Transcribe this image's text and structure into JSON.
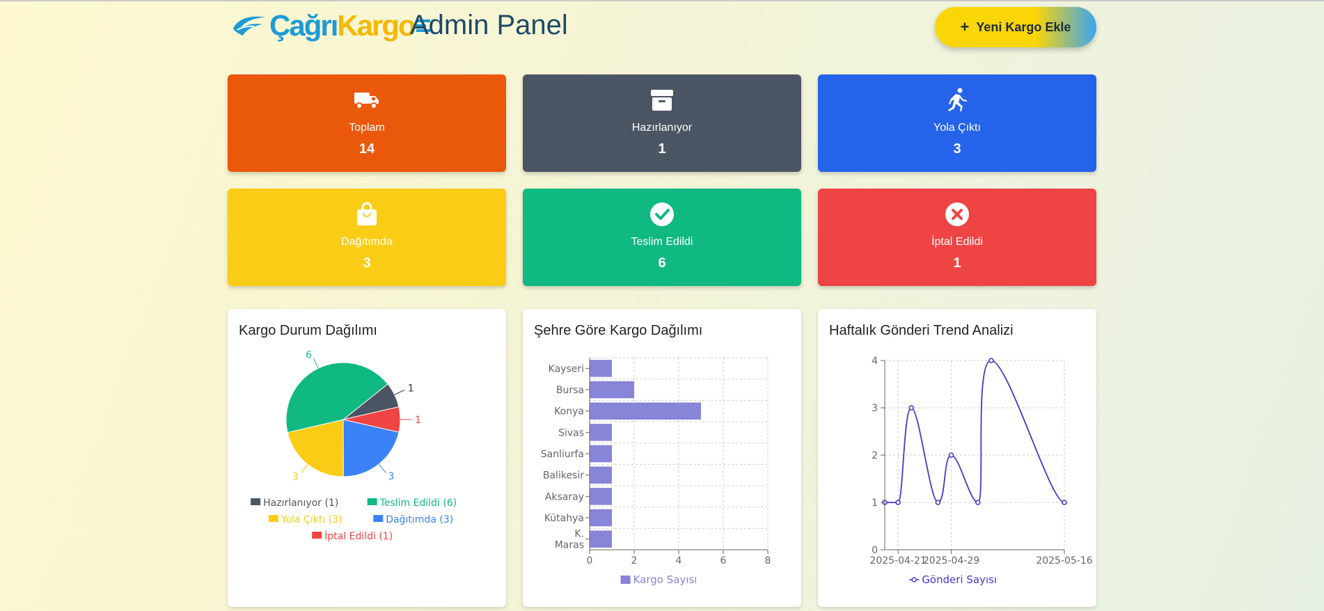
{
  "header": {
    "logo_part1": "Çağrı",
    "logo_part2": "Kargo",
    "title": "Admin Panel",
    "add_button_label": "Yeni Kargo Ekle"
  },
  "stats": [
    {
      "label": "Toplam",
      "value": "14",
      "color": "#ea580c",
      "icon": "truck-icon"
    },
    {
      "label": "Hazırlanıyor",
      "value": "1",
      "color": "#4b5563",
      "icon": "archive-box-icon"
    },
    {
      "label": "Yola Çıktı",
      "value": "3",
      "color": "#2563eb",
      "icon": "running-person-icon"
    },
    {
      "label": "Dağıtımda",
      "value": "3",
      "color": "#facc15",
      "icon": "shopping-bag-icon"
    },
    {
      "label": "Teslim Edildi",
      "value": "6",
      "color": "#10b981",
      "icon": "check-circle-icon"
    },
    {
      "label": "İptal Edildi",
      "value": "1",
      "color": "#ef4444",
      "icon": "x-circle-icon"
    }
  ],
  "charts": {
    "status": {
      "title": "Kargo Durum Dağılımı",
      "legend": [
        "Hazırlanıyor (1)",
        "Teslim Edildi (6)",
        "Dağıtımda (3)",
        "Yola Çıktı (3)",
        "İptal Edildi (1)"
      ]
    },
    "city": {
      "title": "Şehre Göre Kargo Dağılımı",
      "legend": "Kargo Sayısı"
    },
    "trend": {
      "title": "Haftalık Gönderi Trend Analizi",
      "legend": "Gönderi Sayısı"
    }
  },
  "chart_data": [
    {
      "type": "pie",
      "title": "Kargo Durum Dağılımı",
      "labels": [
        "Hazırlanıyor",
        "İptal Edildi",
        "Yola Çıktı",
        "Dağıtımda",
        "Teslim Edildi"
      ],
      "values": [
        1,
        1,
        3,
        3,
        6
      ],
      "colors": [
        "#4b5563",
        "#ef4444",
        "#3b82f6",
        "#facc15",
        "#10b981"
      ],
      "legend_position": "bottom"
    },
    {
      "type": "bar",
      "orientation": "horizontal",
      "title": "Şehre Göre Kargo Dağılımı",
      "categories": [
        "Kayseri",
        "Bursa",
        "Konya",
        "Sivas",
        "Sanliurfa",
        "Balikesir",
        "Aksaray",
        "Kütahya",
        "K. Maras"
      ],
      "series": [
        {
          "name": "Kargo Sayısı",
          "values": [
            1,
            2,
            5,
            1,
            1,
            1,
            1,
            1,
            1
          ]
        }
      ],
      "xlim": [
        0,
        8
      ],
      "xticks": [
        0,
        2,
        4,
        6,
        8
      ],
      "color": "#8884d8",
      "grid": true,
      "legend_position": "bottom"
    },
    {
      "type": "line",
      "title": "Haftalık Gönderi Trend Analizi",
      "x": [
        "2025-04-19",
        "2025-04-21",
        "2025-04-23",
        "2025-04-27",
        "2025-04-29",
        "2025-05-03",
        "2025-05-05",
        "2025-05-16"
      ],
      "xticks": [
        "2025-04-21",
        "2025-04-29",
        "2025-05-16"
      ],
      "series": [
        {
          "name": "Gönderi Sayısı",
          "values": [
            1,
            1,
            3,
            1,
            2,
            1,
            4,
            1
          ]
        }
      ],
      "ylim": [
        0,
        4
      ],
      "yticks": [
        0,
        1,
        2,
        3,
        4
      ],
      "color": "#4338ca",
      "grid": true,
      "legend_position": "bottom"
    }
  ]
}
